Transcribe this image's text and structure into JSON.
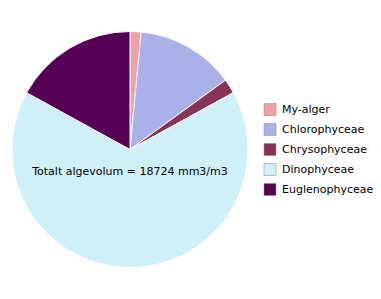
{
  "chart_data": {
    "type": "pie",
    "categories": [
      "My-alger",
      "Chlorophyceae",
      "Chrysophyceae",
      "Dinophyceae",
      "Euglenophyceae"
    ],
    "values": [
      1.5,
      13.5,
      2.0,
      66.0,
      17.0
    ],
    "colors": [
      "#f0a0a0",
      "#aab0e8",
      "#883355",
      "#d0f0f8",
      "#550055"
    ],
    "annotations": [
      "Totalt algevolum = 18724 mm3/m3"
    ],
    "legend": "right"
  }
}
